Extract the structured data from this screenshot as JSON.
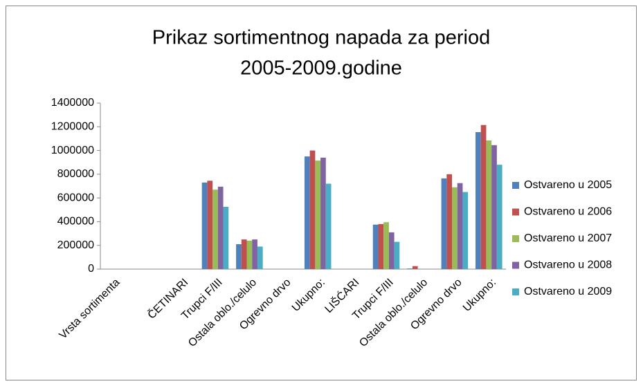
{
  "chart_data": {
    "type": "bar",
    "title": [
      "Prikaz sortimentnog napada za period",
      "2005-2009.godine"
    ],
    "categories": [
      "Vrsta sortimenta",
      null,
      "ČETINARI",
      "Trupci F/III",
      "Ostala oblo./celulo",
      "Ogrevno drvo",
      "Ukupno:",
      "LIŠĆARI",
      "Trupci F/III",
      "Ostala oblo./celulo",
      "Ogrevno drvo",
      "Ukupno:"
    ],
    "series": [
      {
        "name": "Ostvareno u 2005",
        "color": "#4f81bd",
        "values": [
          null,
          null,
          null,
          730000,
          210000,
          null,
          950000,
          null,
          375000,
          5000,
          765000,
          1155000
        ]
      },
      {
        "name": "Ostvareno u 2006",
        "color": "#c0504d",
        "values": [
          null,
          null,
          null,
          745000,
          250000,
          null,
          1000000,
          null,
          380000,
          25000,
          800000,
          1215000
        ]
      },
      {
        "name": "Ostvareno u 2007",
        "color": "#9bbb59",
        "values": [
          null,
          null,
          null,
          670000,
          240000,
          null,
          915000,
          null,
          395000,
          0,
          690000,
          1085000
        ]
      },
      {
        "name": "Ostvareno u 2008",
        "color": "#8064a2",
        "values": [
          null,
          null,
          null,
          695000,
          250000,
          null,
          940000,
          null,
          310000,
          0,
          725000,
          1045000
        ]
      },
      {
        "name": "Ostvareno u 2009",
        "color": "#4bacc6",
        "values": [
          null,
          null,
          null,
          525000,
          190000,
          null,
          720000,
          null,
          230000,
          0,
          650000,
          880000
        ]
      }
    ],
    "ylim": [
      0,
      1400000
    ],
    "yticks": [
      0,
      200000,
      400000,
      600000,
      800000,
      1000000,
      1200000,
      1400000
    ],
    "grid": false,
    "legend": "right"
  }
}
